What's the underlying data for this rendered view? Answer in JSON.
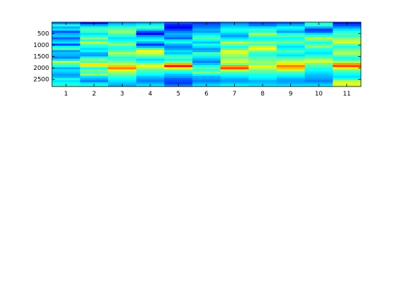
{
  "chart_data": {
    "type": "heatmap",
    "colormap": "jet",
    "x_tick_labels": [
      "1",
      "2",
      "3",
      "4",
      "5",
      "6",
      "7",
      "8",
      "9",
      "10",
      "11"
    ],
    "y_tick_labels": [
      "500",
      "1000",
      "1500",
      "2000",
      "2500"
    ],
    "xlim": [
      0.5,
      11.5
    ],
    "ylim": [
      0,
      2810
    ],
    "y_axis_reversed": true,
    "grid": false,
    "colorbar": false,
    "value_range": [
      0,
      1
    ],
    "columns": [
      {
        "column": 1,
        "band_values": [
          0.25,
          0.4,
          0.3,
          0.35,
          0.2,
          0.3,
          0.33,
          0.22,
          0.3,
          0.35,
          0.2,
          0.38,
          0.45,
          0.28,
          0.32,
          0.3,
          0.25,
          0.35,
          0.55,
          0.45,
          0.4,
          0.3,
          0.35,
          0.32,
          0.28,
          0.3,
          0.4,
          0.35,
          0.38,
          0.42
        ]
      },
      {
        "column": 2,
        "band_values": [
          0.15,
          0.3,
          0.4,
          0.45,
          0.42,
          0.35,
          0.4,
          0.5,
          0.42,
          0.55,
          0.45,
          0.4,
          0.35,
          0.38,
          0.3,
          0.28,
          0.4,
          0.5,
          0.45,
          0.65,
          0.55,
          0.4,
          0.48,
          0.45,
          0.52,
          0.35,
          0.3,
          0.25,
          0.35,
          0.4
        ]
      },
      {
        "column": 3,
        "band_values": [
          0.28,
          0.35,
          0.42,
          0.48,
          0.52,
          0.45,
          0.4,
          0.35,
          0.38,
          0.45,
          0.5,
          0.42,
          0.4,
          0.45,
          0.55,
          0.48,
          0.4,
          0.42,
          0.5,
          0.55,
          0.68,
          0.75,
          0.6,
          0.52,
          0.48,
          0.42,
          0.38,
          0.35,
          0.32,
          0.3
        ]
      },
      {
        "column": 4,
        "band_values": [
          0.3,
          0.38,
          0.45,
          0.35,
          0.2,
          0.12,
          0.28,
          0.35,
          0.4,
          0.3,
          0.18,
          0.3,
          0.45,
          0.62,
          0.58,
          0.5,
          0.42,
          0.35,
          0.4,
          0.55,
          0.6,
          0.52,
          0.45,
          0.42,
          0.38,
          0.32,
          0.28,
          0.25,
          0.3,
          0.35
        ]
      },
      {
        "column": 5,
        "band_values": [
          0.2,
          0.15,
          0.12,
          0.18,
          0.25,
          0.3,
          0.28,
          0.22,
          0.35,
          0.4,
          0.3,
          0.25,
          0.28,
          0.35,
          0.32,
          0.4,
          0.45,
          0.38,
          0.5,
          0.7,
          0.85,
          0.6,
          0.45,
          0.38,
          0.32,
          0.28,
          0.22,
          0.2,
          0.18,
          0.25
        ]
      },
      {
        "column": 6,
        "band_values": [
          0.18,
          0.22,
          0.25,
          0.3,
          0.28,
          0.35,
          0.4,
          0.45,
          0.38,
          0.32,
          0.4,
          0.35,
          0.28,
          0.3,
          0.45,
          0.4,
          0.35,
          0.3,
          0.25,
          0.32,
          0.4,
          0.45,
          0.42,
          0.5,
          0.38,
          0.3,
          0.28,
          0.25,
          0.3,
          0.35
        ]
      },
      {
        "column": 7,
        "band_values": [
          0.25,
          0.3,
          0.35,
          0.4,
          0.38,
          0.32,
          0.28,
          0.35,
          0.42,
          0.55,
          0.48,
          0.4,
          0.45,
          0.6,
          0.58,
          0.52,
          0.48,
          0.55,
          0.58,
          0.5,
          0.72,
          0.8,
          0.55,
          0.45,
          0.4,
          0.35,
          0.3,
          0.28,
          0.32,
          0.38
        ]
      },
      {
        "column": 8,
        "band_values": [
          0.2,
          0.25,
          0.35,
          0.42,
          0.4,
          0.55,
          0.45,
          0.38,
          0.42,
          0.5,
          0.45,
          0.55,
          0.62,
          0.5,
          0.42,
          0.4,
          0.45,
          0.48,
          0.52,
          0.5,
          0.6,
          0.55,
          0.48,
          0.45,
          0.4,
          0.38,
          0.35,
          0.3,
          0.32,
          0.35
        ]
      },
      {
        "column": 9,
        "band_values": [
          0.22,
          0.3,
          0.38,
          0.35,
          0.28,
          0.4,
          0.45,
          0.38,
          0.42,
          0.48,
          0.4,
          0.35,
          0.38,
          0.45,
          0.4,
          0.35,
          0.42,
          0.5,
          0.58,
          0.65,
          0.75,
          0.68,
          0.55,
          0.45,
          0.4,
          0.35,
          0.3,
          0.28,
          0.3,
          0.35
        ]
      },
      {
        "column": 10,
        "band_values": [
          0.4,
          0.42,
          0.3,
          0.18,
          0.22,
          0.35,
          0.42,
          0.55,
          0.48,
          0.4,
          0.45,
          0.5,
          0.42,
          0.38,
          0.35,
          0.4,
          0.45,
          0.55,
          0.58,
          0.48,
          0.45,
          0.4,
          0.38,
          0.35,
          0.32,
          0.3,
          0.28,
          0.25,
          0.3,
          0.35
        ]
      },
      {
        "column": 11,
        "band_values": [
          0.15,
          0.2,
          0.28,
          0.35,
          0.4,
          0.45,
          0.42,
          0.5,
          0.55,
          0.58,
          0.48,
          0.4,
          0.45,
          0.5,
          0.55,
          0.48,
          0.4,
          0.42,
          0.55,
          0.72,
          0.8,
          0.6,
          0.48,
          0.42,
          0.38,
          0.35,
          0.4,
          0.55,
          0.6,
          0.58
        ]
      }
    ]
  }
}
